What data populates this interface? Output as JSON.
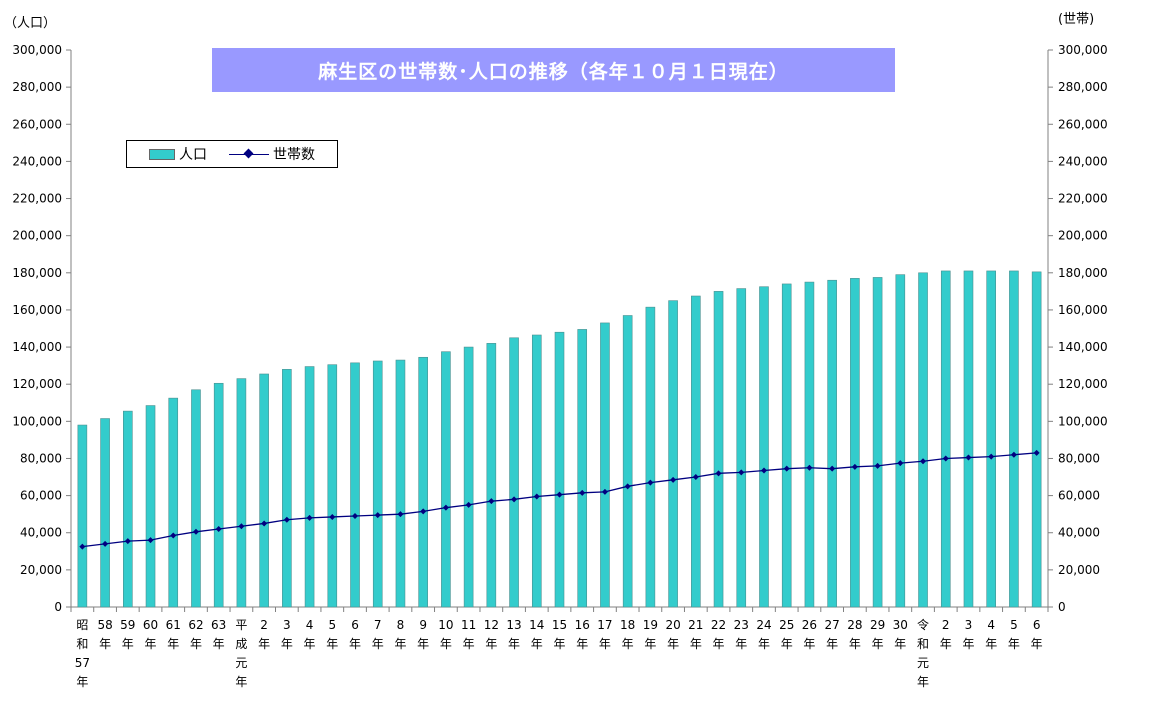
{
  "chart_data": {
    "type": "bar",
    "title": "麻生区の世帯数･人口の推移（各年１０月１日現在）",
    "left_axis_label": "（人口）",
    "right_axis_label": "(世帯)",
    "ylim": [
      0,
      300000
    ],
    "yticks": [
      "300,000",
      "280,000",
      "260,000",
      "240,000",
      "220,000",
      "200,000",
      "180,000",
      "160,000",
      "140,000",
      "120,000",
      "100,000",
      "80,000",
      "60,000",
      "40,000",
      "20,000",
      "0"
    ],
    "ytick_values": [
      300000,
      280000,
      260000,
      240000,
      220000,
      200000,
      180000,
      160000,
      140000,
      120000,
      100000,
      80000,
      60000,
      40000,
      20000,
      0
    ],
    "grid": false,
    "legend_position": "top-left",
    "categories": [
      "昭和57年",
      "58年",
      "59年",
      "60年",
      "61年",
      "62年",
      "63年",
      "平成元年",
      "2年",
      "3年",
      "4年",
      "5年",
      "6年",
      "7年",
      "8年",
      "9年",
      "10年",
      "11年",
      "12年",
      "13年",
      "14年",
      "15年",
      "16年",
      "17年",
      "18年",
      "19年",
      "20年",
      "21年",
      "22年",
      "23年",
      "24年",
      "25年",
      "26年",
      "27年",
      "28年",
      "29年",
      "30年",
      "令和元年",
      "2年",
      "3年",
      "4年",
      "5年",
      "6年"
    ],
    "category_lines": [
      [
        "昭",
        "和",
        "57",
        "年"
      ],
      [
        "58",
        "年"
      ],
      [
        "59",
        "年"
      ],
      [
        "60",
        "年"
      ],
      [
        "61",
        "年"
      ],
      [
        "62",
        "年"
      ],
      [
        "63",
        "年"
      ],
      [
        "平",
        "成",
        "元",
        "年"
      ],
      [
        "2",
        "年"
      ],
      [
        "3",
        "年"
      ],
      [
        "4",
        "年"
      ],
      [
        "5",
        "年"
      ],
      [
        "6",
        "年"
      ],
      [
        "7",
        "年"
      ],
      [
        "8",
        "年"
      ],
      [
        "9",
        "年"
      ],
      [
        "10",
        "年"
      ],
      [
        "11",
        "年"
      ],
      [
        "12",
        "年"
      ],
      [
        "13",
        "年"
      ],
      [
        "14",
        "年"
      ],
      [
        "15",
        "年"
      ],
      [
        "16",
        "年"
      ],
      [
        "17",
        "年"
      ],
      [
        "18",
        "年"
      ],
      [
        "19",
        "年"
      ],
      [
        "20",
        "年"
      ],
      [
        "21",
        "年"
      ],
      [
        "22",
        "年"
      ],
      [
        "23",
        "年"
      ],
      [
        "24",
        "年"
      ],
      [
        "25",
        "年"
      ],
      [
        "26",
        "年"
      ],
      [
        "27",
        "年"
      ],
      [
        "28",
        "年"
      ],
      [
        "29",
        "年"
      ],
      [
        "30",
        "年"
      ],
      [
        "令",
        "和",
        "元",
        "年"
      ],
      [
        "2",
        "年"
      ],
      [
        "3",
        "年"
      ],
      [
        "4",
        "年"
      ],
      [
        "5",
        "年"
      ],
      [
        "6",
        "年"
      ]
    ],
    "series": [
      {
        "name": "人口",
        "type": "bar",
        "color": "#33cccc",
        "values": [
          98000,
          101500,
          105500,
          108500,
          112500,
          117000,
          120500,
          123000,
          125500,
          128000,
          129500,
          130500,
          131500,
          132500,
          133000,
          134500,
          137500,
          140000,
          142000,
          145000,
          146500,
          148000,
          149500,
          153000,
          157000,
          161500,
          165000,
          167500,
          170000,
          171500,
          172500,
          174000,
          175000,
          176000,
          177000,
          177500,
          179000,
          180000,
          181000,
          181000,
          181000,
          181000,
          180500
        ]
      },
      {
        "name": "世帯数",
        "type": "line",
        "color": "#000080",
        "values": [
          32500,
          34000,
          35500,
          36000,
          38500,
          40500,
          42000,
          43500,
          45000,
          47000,
          48000,
          48500,
          49000,
          49500,
          50000,
          51500,
          53500,
          55000,
          57000,
          58000,
          59500,
          60500,
          61500,
          62000,
          65000,
          67000,
          68500,
          70000,
          72000,
          72500,
          73500,
          74500,
          75000,
          74500,
          75500,
          76000,
          77500,
          78500,
          80000,
          80500,
          81000,
          82000,
          83000
        ]
      }
    ]
  }
}
